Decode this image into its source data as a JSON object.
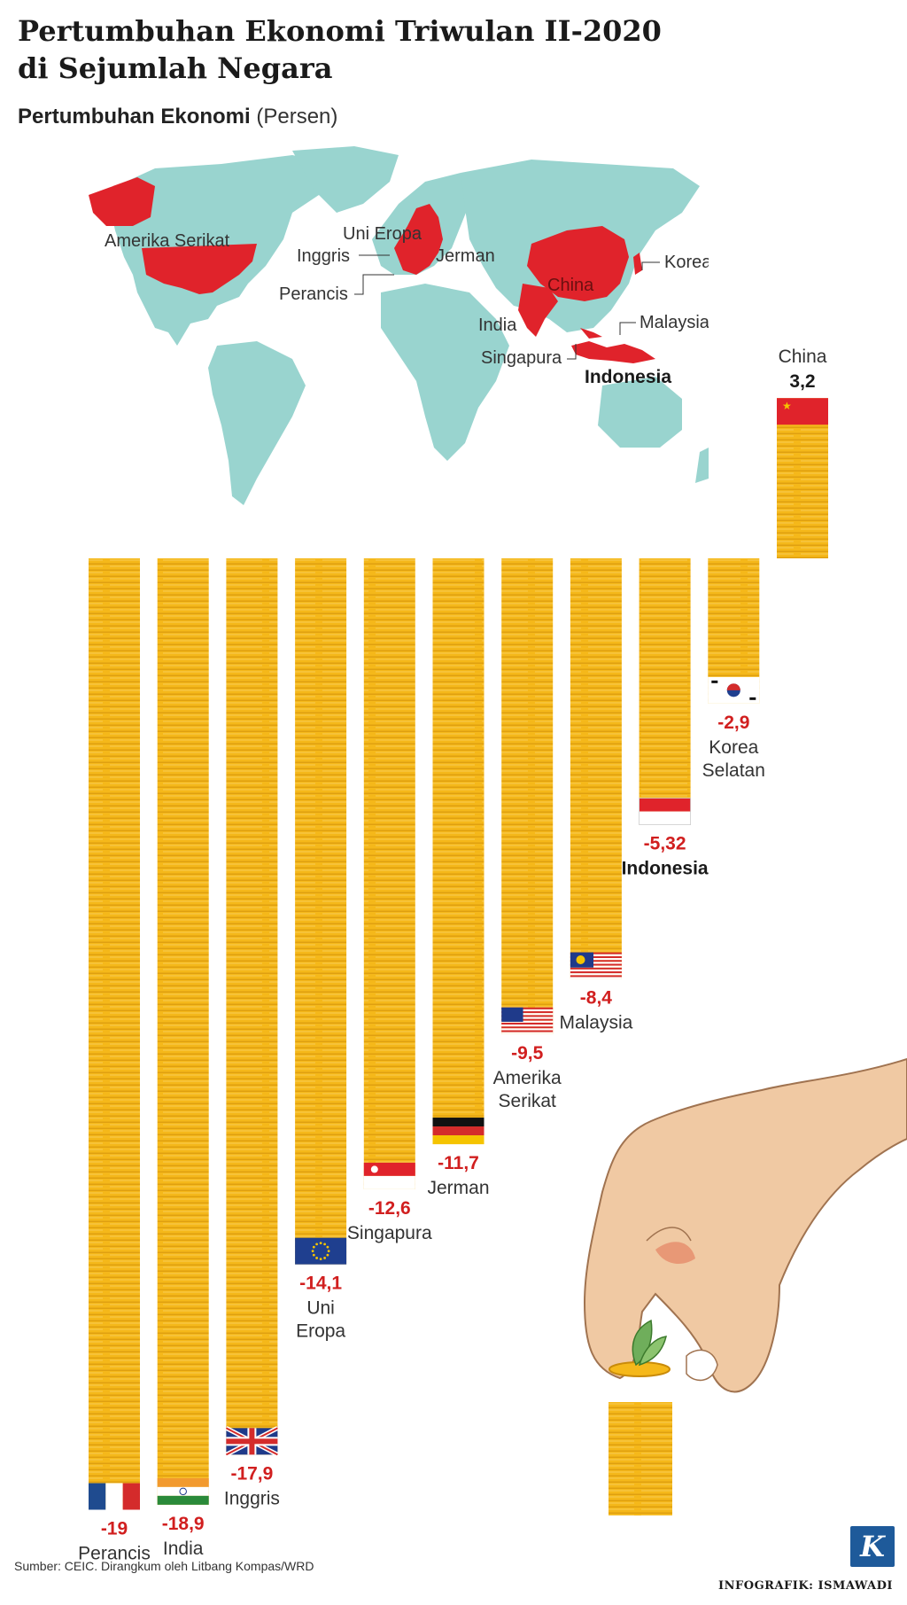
{
  "title_line1": "Pertumbuhan Ekonomi Triwulan II-2020",
  "title_line2": "di Sejumlah Negara",
  "subtitle": "Pertumbuhan Ekonomi",
  "subtitle_unit": "(Persen)",
  "map": {
    "labels": {
      "usa": "Amerika Serikat",
      "eu": "Uni Eropa",
      "uk": "Inggris",
      "germany": "Jerman",
      "france": "Perancis",
      "china": "China",
      "korea": "Korea Selatan",
      "malaysia": "Malaysia",
      "india": "India",
      "singapore": "Singapura",
      "indonesia": "Indonesia"
    },
    "colors": {
      "ocean": "#ffffff",
      "land": "#99d4cf",
      "highlight": "#e0232b"
    }
  },
  "chart_data": {
    "type": "bar",
    "title": "Pertumbuhan Ekonomi Triwulan II-2020 di Sejumlah Negara",
    "ylabel": "Pertumbuhan Ekonomi (Persen)",
    "ylim": [
      -19,
      3.2
    ],
    "categories": [
      "Perancis",
      "India",
      "Inggris",
      "Uni Eropa",
      "Singapura",
      "Jerman",
      "Amerika Serikat",
      "Malaysia",
      "Indonesia",
      "Korea Selatan",
      "China"
    ],
    "values": [
      -19,
      -18.9,
      -17.9,
      -14.1,
      -12.6,
      -11.7,
      -9.5,
      -8.4,
      -5.32,
      -2.9,
      3.2
    ],
    "value_labels": [
      "-19",
      "-18,9",
      "-17,9",
      "-14,1",
      "-12,6",
      "-11,7",
      "-9,5",
      "-8,4",
      "-5,32",
      "-2,9",
      "3,2"
    ],
    "category_labels": [
      [
        "Perancis"
      ],
      [
        "India"
      ],
      [
        "Inggris"
      ],
      [
        "Uni",
        "Eropa"
      ],
      [
        "Singapura"
      ],
      [
        "Jerman"
      ],
      [
        "Amerika",
        "Serikat"
      ],
      [
        "Malaysia"
      ],
      [
        "Indonesia"
      ],
      [
        "Korea",
        "Selatan"
      ],
      [
        "China"
      ]
    ],
    "flags": [
      "france-flag-icon",
      "india-flag-icon",
      "uk-flag-icon",
      "eu-flag-icon",
      "singapore-flag-icon",
      "germany-flag-icon",
      "usa-flag-icon",
      "malaysia-flag-icon",
      "indonesia-flag-icon",
      "korea-flag-icon",
      "china-flag-icon"
    ],
    "colors": {
      "coin": "#f5b81a",
      "coin_edge": "#e0a010",
      "negative_value": "#d11f1f"
    },
    "grid": false
  },
  "source": "Sumber: CEIC. Dirangkum oleh Litbang Kompas/WRD",
  "credit": "INFOGRAFIK: ISMAWADI",
  "logo_letter": "K"
}
